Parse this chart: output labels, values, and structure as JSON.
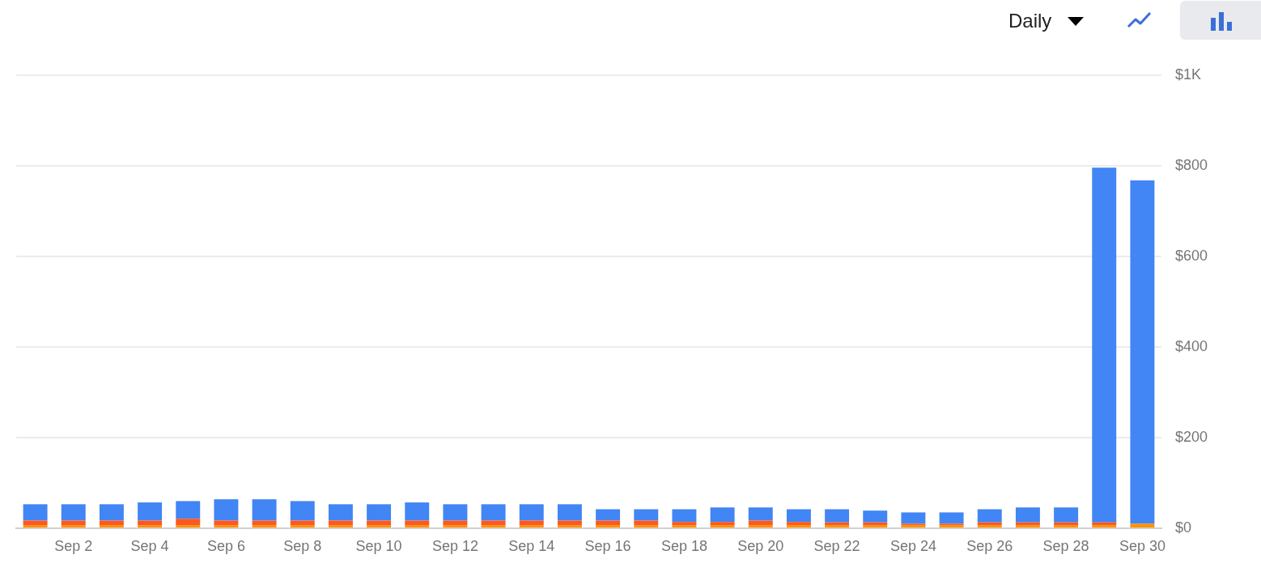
{
  "chart_data": {
    "type": "bar",
    "stacked": true,
    "categories": [
      null,
      "Sep 2",
      null,
      "Sep 4",
      null,
      "Sep 6",
      null,
      "Sep 8",
      null,
      "Sep 10",
      null,
      "Sep 12",
      null,
      "Sep 14",
      null,
      "Sep 16",
      null,
      "Sep 18",
      null,
      "Sep 20",
      null,
      "Sep 22",
      null,
      "Sep 24",
      null,
      "Sep 26",
      null,
      "Sep 28",
      null,
      "Sep 30"
    ],
    "series": [
      {
        "color": "#ff9100",
        "values": [
          7,
          7,
          7,
          7,
          7,
          7,
          7,
          7,
          7,
          7,
          7,
          7,
          7,
          7,
          7,
          7,
          7,
          7,
          7,
          7,
          7,
          7,
          7,
          7,
          7,
          7,
          7,
          7,
          7,
          10
        ]
      },
      {
        "color": "#ff5722",
        "values": [
          10,
          10,
          10,
          10,
          14,
          10,
          10,
          10,
          10,
          10,
          10,
          10,
          10,
          10,
          10,
          10,
          10,
          7,
          7,
          10,
          7,
          6,
          6,
          3,
          3,
          6,
          6,
          6,
          6,
          0
        ]
      },
      {
        "color": "#4285f4",
        "values": [
          36,
          36,
          36,
          40,
          39,
          47,
          47,
          43,
          36,
          36,
          40,
          36,
          36,
          36,
          36,
          25,
          25,
          28,
          32,
          29,
          28,
          29,
          26,
          25,
          25,
          29,
          33,
          33,
          783,
          758
        ]
      }
    ],
    "ylim": [
      0,
      1000
    ],
    "yticks": [
      {
        "value": 0,
        "label": "$0"
      },
      {
        "value": 200,
        "label": "$200"
      },
      {
        "value": 400,
        "label": "$400"
      },
      {
        "value": 600,
        "label": "$600"
      },
      {
        "value": 800,
        "label": "$800"
      },
      {
        "value": 1000,
        "label": "$1K"
      }
    ],
    "grid": "y",
    "legend": false,
    "annotations": [
      "Daily"
    ]
  }
}
